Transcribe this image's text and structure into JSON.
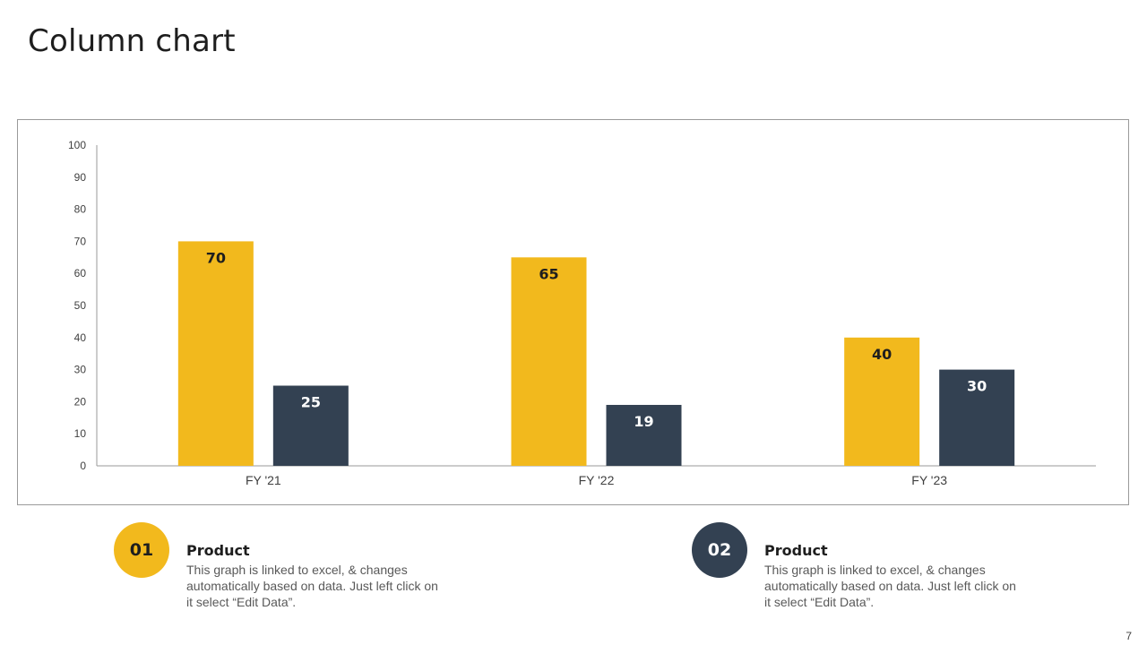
{
  "slide": {
    "title": "Column chart",
    "page_number": "7"
  },
  "colors": {
    "series_1": "#F2B91D",
    "series_2": "#334152",
    "axis": "#9a9a9a",
    "tick_text": "#404040",
    "label_dark": "#1e1e1e",
    "label_light": "#ffffff"
  },
  "chart_data": {
    "type": "bar",
    "title": "",
    "xlabel": "",
    "ylabel": "",
    "categories": [
      "FY '21",
      "FY '22",
      "FY '23"
    ],
    "series": [
      {
        "name": "Product 01",
        "values": [
          70,
          65,
          40
        ]
      },
      {
        "name": "Product 02",
        "values": [
          25,
          19,
          30
        ]
      }
    ],
    "ylim": [
      0,
      100
    ],
    "yticks": [
      0,
      10,
      20,
      30,
      40,
      50,
      60,
      70,
      80,
      90,
      100
    ],
    "grid": false,
    "data_labels": true
  },
  "legend": [
    {
      "number": "01",
      "title": "Product",
      "description": "This graph is linked to excel, & changes automatically based on data. Just left click on it select “Edit Data”."
    },
    {
      "number": "02",
      "title": "Product",
      "description": "This graph is linked to excel, & changes automatically based on data. Just left click on it select “Edit Data”."
    }
  ]
}
